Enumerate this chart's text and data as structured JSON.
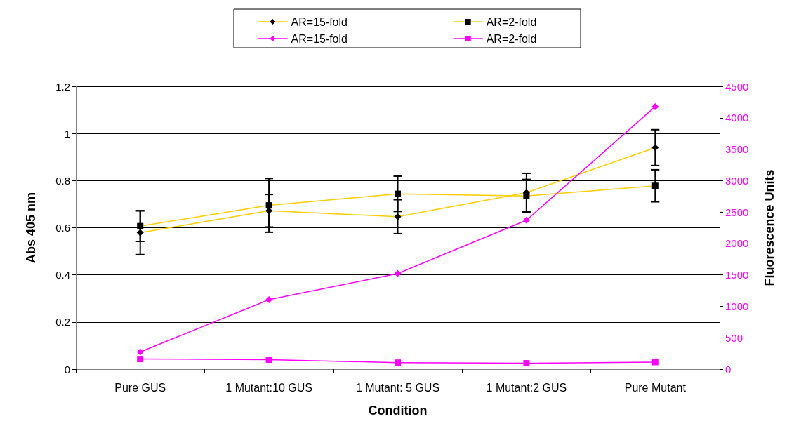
{
  "chart_data": {
    "type": "line",
    "xlabel": "Condition",
    "ylabel": "Abs 405 nm",
    "y2label": "Fluorescence Units",
    "categories": [
      "Pure GUS",
      "1 Mutant:10 GUS",
      "1 Mutant: 5 GUS",
      "1 Mutant:2 GUS",
      "Pure Mutant"
    ],
    "series": [
      {
        "name": "AR=15-fold",
        "color": "#ffcc00",
        "marker": "diamond",
        "values": [
          0.579,
          0.672,
          0.647,
          0.749,
          0.94
        ],
        "errors": [
          0.093,
          0.069,
          0.072,
          0.082,
          0.076
        ]
      },
      {
        "name": "AR=2-fold",
        "color": "#ffcc00",
        "marker": "square",
        "values": [
          0.607,
          0.695,
          0.744,
          0.735,
          0.778
        ],
        "errors": [
          0.065,
          0.114,
          0.075,
          0.07,
          0.068
        ]
      },
      {
        "name": "AR=15-fold",
        "color": "#ff00ff",
        "marker": "diamond",
        "axis": "y2",
        "values": [
          273,
          1105,
          1521,
          2370,
          4177
        ]
      },
      {
        "name": "AR=2-fold",
        "color": "#ff00ff",
        "marker": "square",
        "axis": "y2",
        "values": [
          161,
          151,
          104,
          94,
          112
        ]
      }
    ],
    "ylim": [
      0,
      1.2
    ],
    "yticks": [
      0,
      0.2,
      0.4,
      0.6,
      0.8,
      1,
      1.2
    ],
    "y2lim": [
      0,
      4500
    ],
    "y2ticks": [
      0,
      500,
      1000,
      1500,
      2000,
      2500,
      3000,
      3500,
      4000,
      4500
    ],
    "grid": "y",
    "legend": "top"
  }
}
